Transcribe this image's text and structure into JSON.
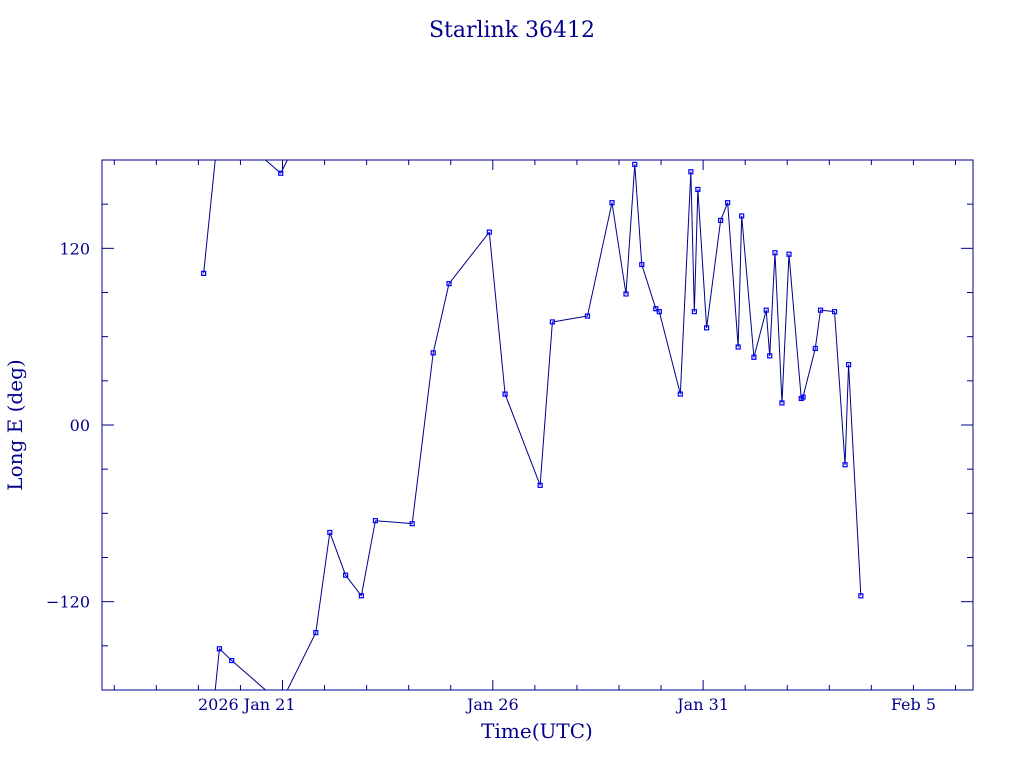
{
  "chart_data": {
    "type": "line",
    "title": "Starlink 36412",
    "xlabel": "Time(UTC)",
    "ylabel": "Long E (deg)",
    "xlim": [
      "2026-01-16T17:00Z",
      "2026-02-06T10:00Z"
    ],
    "ylim": [
      -180,
      180
    ],
    "x_tick_labels": [
      {
        "x": "2026-01-21",
        "label": "2026 Jan 21"
      },
      {
        "x": "2026-01-26",
        "label": "Jan 26"
      },
      {
        "x": "2026-01-31",
        "label": "Jan 31"
      },
      {
        "x": "2026-02-05",
        "label": "Feb  5"
      }
    ],
    "y_tick_labels": [
      {
        "y": 120,
        "label": "120"
      },
      {
        "y": 0,
        "label": "00"
      },
      {
        "y": -120,
        "label": "−120"
      }
    ],
    "grid": false,
    "colors": {
      "line": "#00008b",
      "marker": "#0000ff",
      "frame": "#00008b",
      "text": "#00008b"
    },
    "series": [
      {
        "values": [
          {
            "x": "2026-01-19T03:00Z",
            "y": 103
          },
          {
            "x": "2026-01-19T12:00Z",
            "y": -152
          },
          {
            "x": "2026-01-19T19:00Z",
            "y": -160
          },
          {
            "x": "2026-01-20T23:00Z",
            "y": 171
          },
          {
            "x": "2026-01-21T19:00Z",
            "y": -141
          },
          {
            "x": "2026-01-22T03:00Z",
            "y": -73
          },
          {
            "x": "2026-01-22T12:00Z",
            "y": -102
          },
          {
            "x": "2026-01-22T21:00Z",
            "y": -116
          },
          {
            "x": "2026-01-23T05:00Z",
            "y": -65
          },
          {
            "x": "2026-01-24T02:00Z",
            "y": -67
          },
          {
            "x": "2026-01-24T14:00Z",
            "y": 49
          },
          {
            "x": "2026-01-24T23:00Z",
            "y": 96
          },
          {
            "x": "2026-01-25T22:00Z",
            "y": 131
          },
          {
            "x": "2026-01-26T07:00Z",
            "y": 21
          },
          {
            "x": "2026-01-27T03:00Z",
            "y": -41
          },
          {
            "x": "2026-01-27T10:00Z",
            "y": 70
          },
          {
            "x": "2026-01-28T06:00Z",
            "y": 74
          },
          {
            "x": "2026-01-28T20:00Z",
            "y": 151
          },
          {
            "x": "2026-01-29T04:00Z",
            "y": 89
          },
          {
            "x": "2026-01-29T09:00Z",
            "y": 177
          },
          {
            "x": "2026-01-29T13:00Z",
            "y": 109
          },
          {
            "x": "2026-01-29T21:00Z",
            "y": 79
          },
          {
            "x": "2026-01-29T23:00Z",
            "y": 77
          },
          {
            "x": "2026-01-30T11:00Z",
            "y": 21
          },
          {
            "x": "2026-01-30T17:00Z",
            "y": 172
          },
          {
            "x": "2026-01-30T19:00Z",
            "y": 77
          },
          {
            "x": "2026-01-30T21:00Z",
            "y": 160
          },
          {
            "x": "2026-01-31T02:00Z",
            "y": 66
          },
          {
            "x": "2026-01-31T10:00Z",
            "y": 139
          },
          {
            "x": "2026-01-31T14:00Z",
            "y": 151
          },
          {
            "x": "2026-01-31T20:00Z",
            "y": 53
          },
          {
            "x": "2026-01-31T22:00Z",
            "y": 142
          },
          {
            "x": "2026-02-01T05:00Z",
            "y": 46
          },
          {
            "x": "2026-02-01T12:00Z",
            "y": 78
          },
          {
            "x": "2026-02-01T14:00Z",
            "y": 47
          },
          {
            "x": "2026-02-01T17:00Z",
            "y": 117
          },
          {
            "x": "2026-02-01T21:00Z",
            "y": 15
          },
          {
            "x": "2026-02-02T01:00Z",
            "y": 116
          },
          {
            "x": "2026-02-02T08:00Z",
            "y": 18
          },
          {
            "x": "2026-02-02T09:00Z",
            "y": 19
          },
          {
            "x": "2026-02-02T16:00Z",
            "y": 52
          },
          {
            "x": "2026-02-02T19:00Z",
            "y": 78
          },
          {
            "x": "2026-02-03T03:00Z",
            "y": 77
          },
          {
            "x": "2026-02-03T09:00Z",
            "y": -27
          },
          {
            "x": "2026-02-03T11:00Z",
            "y": 41
          },
          {
            "x": "2026-02-03T18:00Z",
            "y": -116
          }
        ]
      }
    ]
  }
}
